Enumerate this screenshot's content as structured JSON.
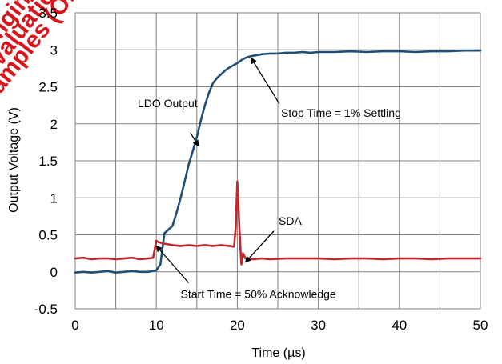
{
  "chart_data": {
    "type": "line",
    "xlabel": "Time (µs)",
    "ylabel": "Output Voltage (V)",
    "xlim": [
      0,
      50
    ],
    "ylim": [
      -0.5,
      3.5
    ],
    "x_ticks": [
      0,
      10,
      20,
      30,
      40,
      50
    ],
    "y_ticks": [
      -0.5,
      0,
      0.5,
      1,
      1.5,
      2,
      2.5,
      3,
      3.5
    ],
    "y_tick_labels": [
      "-0.5",
      "0",
      "0.5",
      "1",
      "1.5",
      "2",
      "2.5",
      "3",
      "3.5"
    ],
    "grid": true,
    "legend": "none",
    "colors": {
      "ldo": "#1f4e79",
      "sda": "#c0282d",
      "watermark": "#d9141a",
      "grid": "#808080"
    },
    "watermark": [
      "Engineering",
      "Evaluation",
      "Samples (OBS)"
    ],
    "series": [
      {
        "key": "ldo",
        "x": [
          0,
          1,
          2,
          3,
          4,
          5,
          6,
          7,
          8,
          9,
          10,
          10.5,
          11,
          11.5,
          12,
          12.5,
          13,
          13.5,
          14,
          14.5,
          15,
          15.5,
          16,
          16.5,
          17,
          17.5,
          18,
          18.5,
          19,
          19.5,
          20,
          20.5,
          21,
          21.5,
          22,
          22.5,
          23,
          24,
          25,
          26,
          27,
          28,
          29,
          30,
          32,
          34,
          36,
          38,
          40,
          42,
          44,
          46,
          48,
          50
        ],
        "y": [
          -0.01,
          0.0,
          -0.01,
          0.0,
          0.01,
          -0.01,
          0.0,
          0.01,
          0.0,
          0.0,
          0.02,
          0.1,
          0.52,
          0.57,
          0.62,
          0.8,
          1.0,
          1.22,
          1.45,
          1.63,
          1.82,
          2.05,
          2.25,
          2.42,
          2.55,
          2.62,
          2.67,
          2.72,
          2.76,
          2.79,
          2.82,
          2.86,
          2.89,
          2.91,
          2.92,
          2.93,
          2.94,
          2.95,
          2.95,
          2.96,
          2.96,
          2.97,
          2.96,
          2.97,
          2.97,
          2.98,
          2.97,
          2.98,
          2.98,
          2.97,
          2.98,
          2.98,
          2.99,
          2.99
        ]
      },
      {
        "key": "sda",
        "x": [
          0,
          1,
          2,
          3,
          4,
          5,
          6,
          7,
          8,
          9,
          9.6,
          10,
          10.3,
          11,
          11.5,
          12,
          13,
          14,
          15,
          16,
          17,
          18,
          19,
          19.6,
          19.8,
          20,
          20.3,
          20.5,
          20.7,
          21,
          22,
          23,
          24,
          26,
          28,
          30,
          32,
          34,
          36,
          38,
          40,
          42,
          44,
          46,
          48,
          50
        ],
        "y": [
          0.18,
          0.19,
          0.17,
          0.18,
          0.18,
          0.17,
          0.18,
          0.19,
          0.17,
          0.18,
          0.19,
          0.42,
          0.4,
          0.38,
          0.37,
          0.36,
          0.35,
          0.36,
          0.35,
          0.36,
          0.35,
          0.36,
          0.35,
          0.34,
          0.6,
          1.22,
          0.5,
          0.1,
          0.25,
          0.18,
          0.17,
          0.18,
          0.17,
          0.18,
          0.18,
          0.18,
          0.17,
          0.18,
          0.18,
          0.17,
          0.18,
          0.18,
          0.17,
          0.18,
          0.18,
          0.18
        ]
      }
    ],
    "annotations": [
      {
        "text": "LDO Output",
        "x": 7.7,
        "y": 2.28,
        "target_x": 15.2,
        "target_y": 1.7
      },
      {
        "text": "Stop Time = 1% Settling",
        "x": 25.4,
        "y": 2.15,
        "target_x": 21.7,
        "target_y": 2.89
      },
      {
        "text": "SDA",
        "x": 25.1,
        "y": 0.69,
        "target_x": 21.0,
        "target_y": 0.13
      },
      {
        "text": "Start Time = 50% Acknowledge",
        "x": 13.0,
        "y": -0.3,
        "target_x": 10.0,
        "target_y": 0.35
      }
    ]
  }
}
